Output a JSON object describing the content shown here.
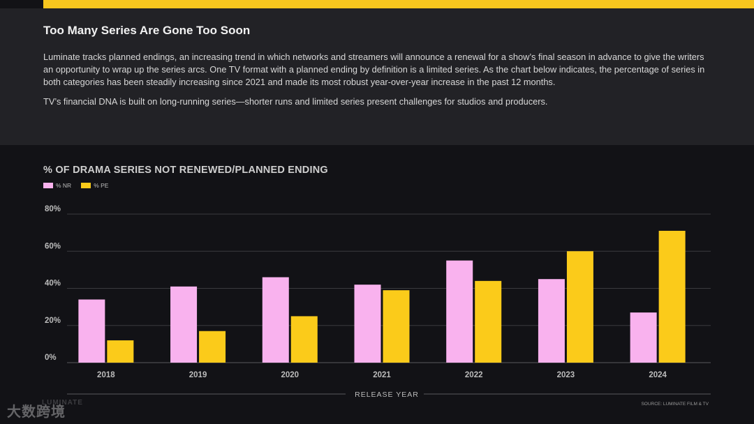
{
  "header": {
    "title": "Too Many Series Are Gone Too Soon",
    "paragraph1": "Luminate tracks planned endings, an increasing trend in which networks and streamers will announce a renewal for a show’s final season in advance to give the writers an opportunity to wrap up the series arcs. One TV format with a planned ending by definition is a limited series. As the chart below indicates, the percentage of series in both categories has been steadily increasing since 2021 and made its most robust year-over-year increase in the past 12 months.",
    "paragraph2": "TV’s financial DNA is built on long-running series—shorter runs and limited series present challenges for studios and producers."
  },
  "footer": {
    "source": "SOURCE: LUMINATE FILM & TV",
    "watermark": "大数跨境",
    "watermark_mark": "LUMINATE"
  },
  "colors": {
    "nr": "#f9b2ee",
    "pe": "#fbcb1a",
    "accent": "#f7c61e"
  },
  "chart_data": {
    "type": "bar",
    "title": "% OF DRAMA SERIES NOT RENEWED/PLANNED ENDING",
    "xlabel": "RELEASE YEAR",
    "ylabel": "",
    "categories": [
      "2018",
      "2019",
      "2020",
      "2021",
      "2022",
      "2023",
      "2024"
    ],
    "series": [
      {
        "name": "% NR",
        "values": [
          34,
          41,
          46,
          42,
          55,
          45,
          27
        ]
      },
      {
        "name": "% PE",
        "values": [
          12,
          17,
          25,
          39,
          44,
          60,
          71
        ]
      }
    ],
    "ylim": [
      0,
      80
    ],
    "yticks": [
      0,
      20,
      40,
      60,
      80
    ],
    "ytick_labels": [
      "0%",
      "20%",
      "40%",
      "60%",
      "80%"
    ],
    "grid": true,
    "legend": "top-left"
  }
}
